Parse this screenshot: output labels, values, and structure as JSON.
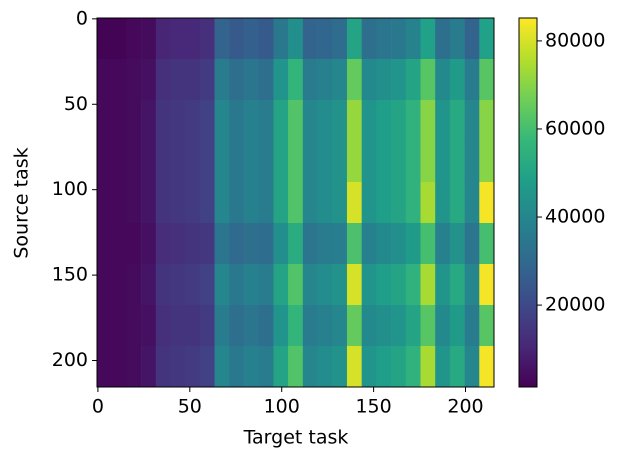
{
  "chart_data": {
    "type": "heatmap",
    "x_label": "Target task",
    "y_label": "Source task",
    "x_edges": [
      0,
      8,
      16,
      24,
      32,
      40,
      48,
      56,
      64,
      72,
      80,
      88,
      96,
      104,
      112,
      120,
      128,
      136,
      144,
      152,
      160,
      168,
      176,
      184,
      192,
      200,
      208,
      216
    ],
    "y_edges": [
      0,
      24,
      48,
      72,
      96,
      120,
      144,
      168,
      192,
      216
    ],
    "values": [
      [
        2000,
        2000,
        3000,
        4000,
        10000,
        11000,
        11000,
        13000,
        28000,
        25000,
        27000,
        25000,
        35000,
        43000,
        28000,
        29000,
        31000,
        50000,
        32000,
        34000,
        35000,
        39000,
        49000,
        32000,
        36000,
        28000,
        49000
      ],
      [
        3000,
        3000,
        4000,
        5000,
        13000,
        14000,
        14000,
        16000,
        36000,
        32000,
        34000,
        32000,
        45000,
        56000,
        36000,
        38000,
        40000,
        65000,
        41000,
        43000,
        45000,
        50000,
        63000,
        41000,
        47000,
        36000,
        63000
      ],
      [
        3000,
        3000,
        4000,
        6000,
        14000,
        15000,
        16000,
        18000,
        40000,
        35000,
        38000,
        36000,
        50000,
        62000,
        40000,
        42000,
        44000,
        72000,
        45000,
        48000,
        50000,
        55000,
        70000,
        45000,
        52000,
        40000,
        70000
      ],
      [
        3000,
        3000,
        4000,
        6000,
        14000,
        15000,
        16000,
        18000,
        40000,
        35000,
        38000,
        36000,
        50000,
        62000,
        40000,
        42000,
        44000,
        72000,
        45000,
        48000,
        50000,
        55000,
        70000,
        45000,
        52000,
        40000,
        70000
      ],
      [
        3000,
        3000,
        4000,
        6000,
        14000,
        15000,
        16000,
        18000,
        40000,
        35000,
        38000,
        36000,
        50000,
        62000,
        40000,
        42000,
        44000,
        80000,
        45000,
        48000,
        50000,
        55000,
        74000,
        45000,
        52000,
        40000,
        84000
      ],
      [
        3000,
        3000,
        3000,
        5000,
        12000,
        13000,
        14000,
        15000,
        34000,
        30000,
        32000,
        31000,
        43000,
        53000,
        34000,
        36000,
        37000,
        61000,
        38000,
        41000,
        43000,
        47000,
        60000,
        38000,
        44000,
        34000,
        60000
      ],
      [
        3000,
        3000,
        4000,
        6000,
        14000,
        15000,
        16000,
        18000,
        40000,
        35000,
        38000,
        36000,
        50000,
        62000,
        40000,
        42000,
        44000,
        80000,
        45000,
        48000,
        50000,
        55000,
        74000,
        45000,
        52000,
        40000,
        84000
      ],
      [
        3000,
        3000,
        4000,
        5000,
        13000,
        14000,
        14000,
        16000,
        36000,
        32000,
        34000,
        32000,
        45000,
        56000,
        36000,
        38000,
        40000,
        65000,
        41000,
        43000,
        45000,
        50000,
        63000,
        41000,
        47000,
        36000,
        63000
      ],
      [
        3000,
        3000,
        4000,
        6000,
        14000,
        15000,
        16000,
        18000,
        40000,
        35000,
        38000,
        36000,
        50000,
        62000,
        40000,
        42000,
        44000,
        80000,
        45000,
        48000,
        50000,
        55000,
        74000,
        45000,
        52000,
        40000,
        84000
      ]
    ],
    "xlim": [
      -0.5,
      215.5
    ],
    "ylim": [
      215.5,
      -0.5
    ],
    "xticks": [
      0,
      50,
      100,
      150,
      200
    ],
    "yticks": [
      0,
      50,
      100,
      150,
      200
    ],
    "colormap": "viridis",
    "clim": [
      1400,
      85200
    ],
    "cticks": [
      20000,
      40000,
      60000,
      80000
    ]
  }
}
